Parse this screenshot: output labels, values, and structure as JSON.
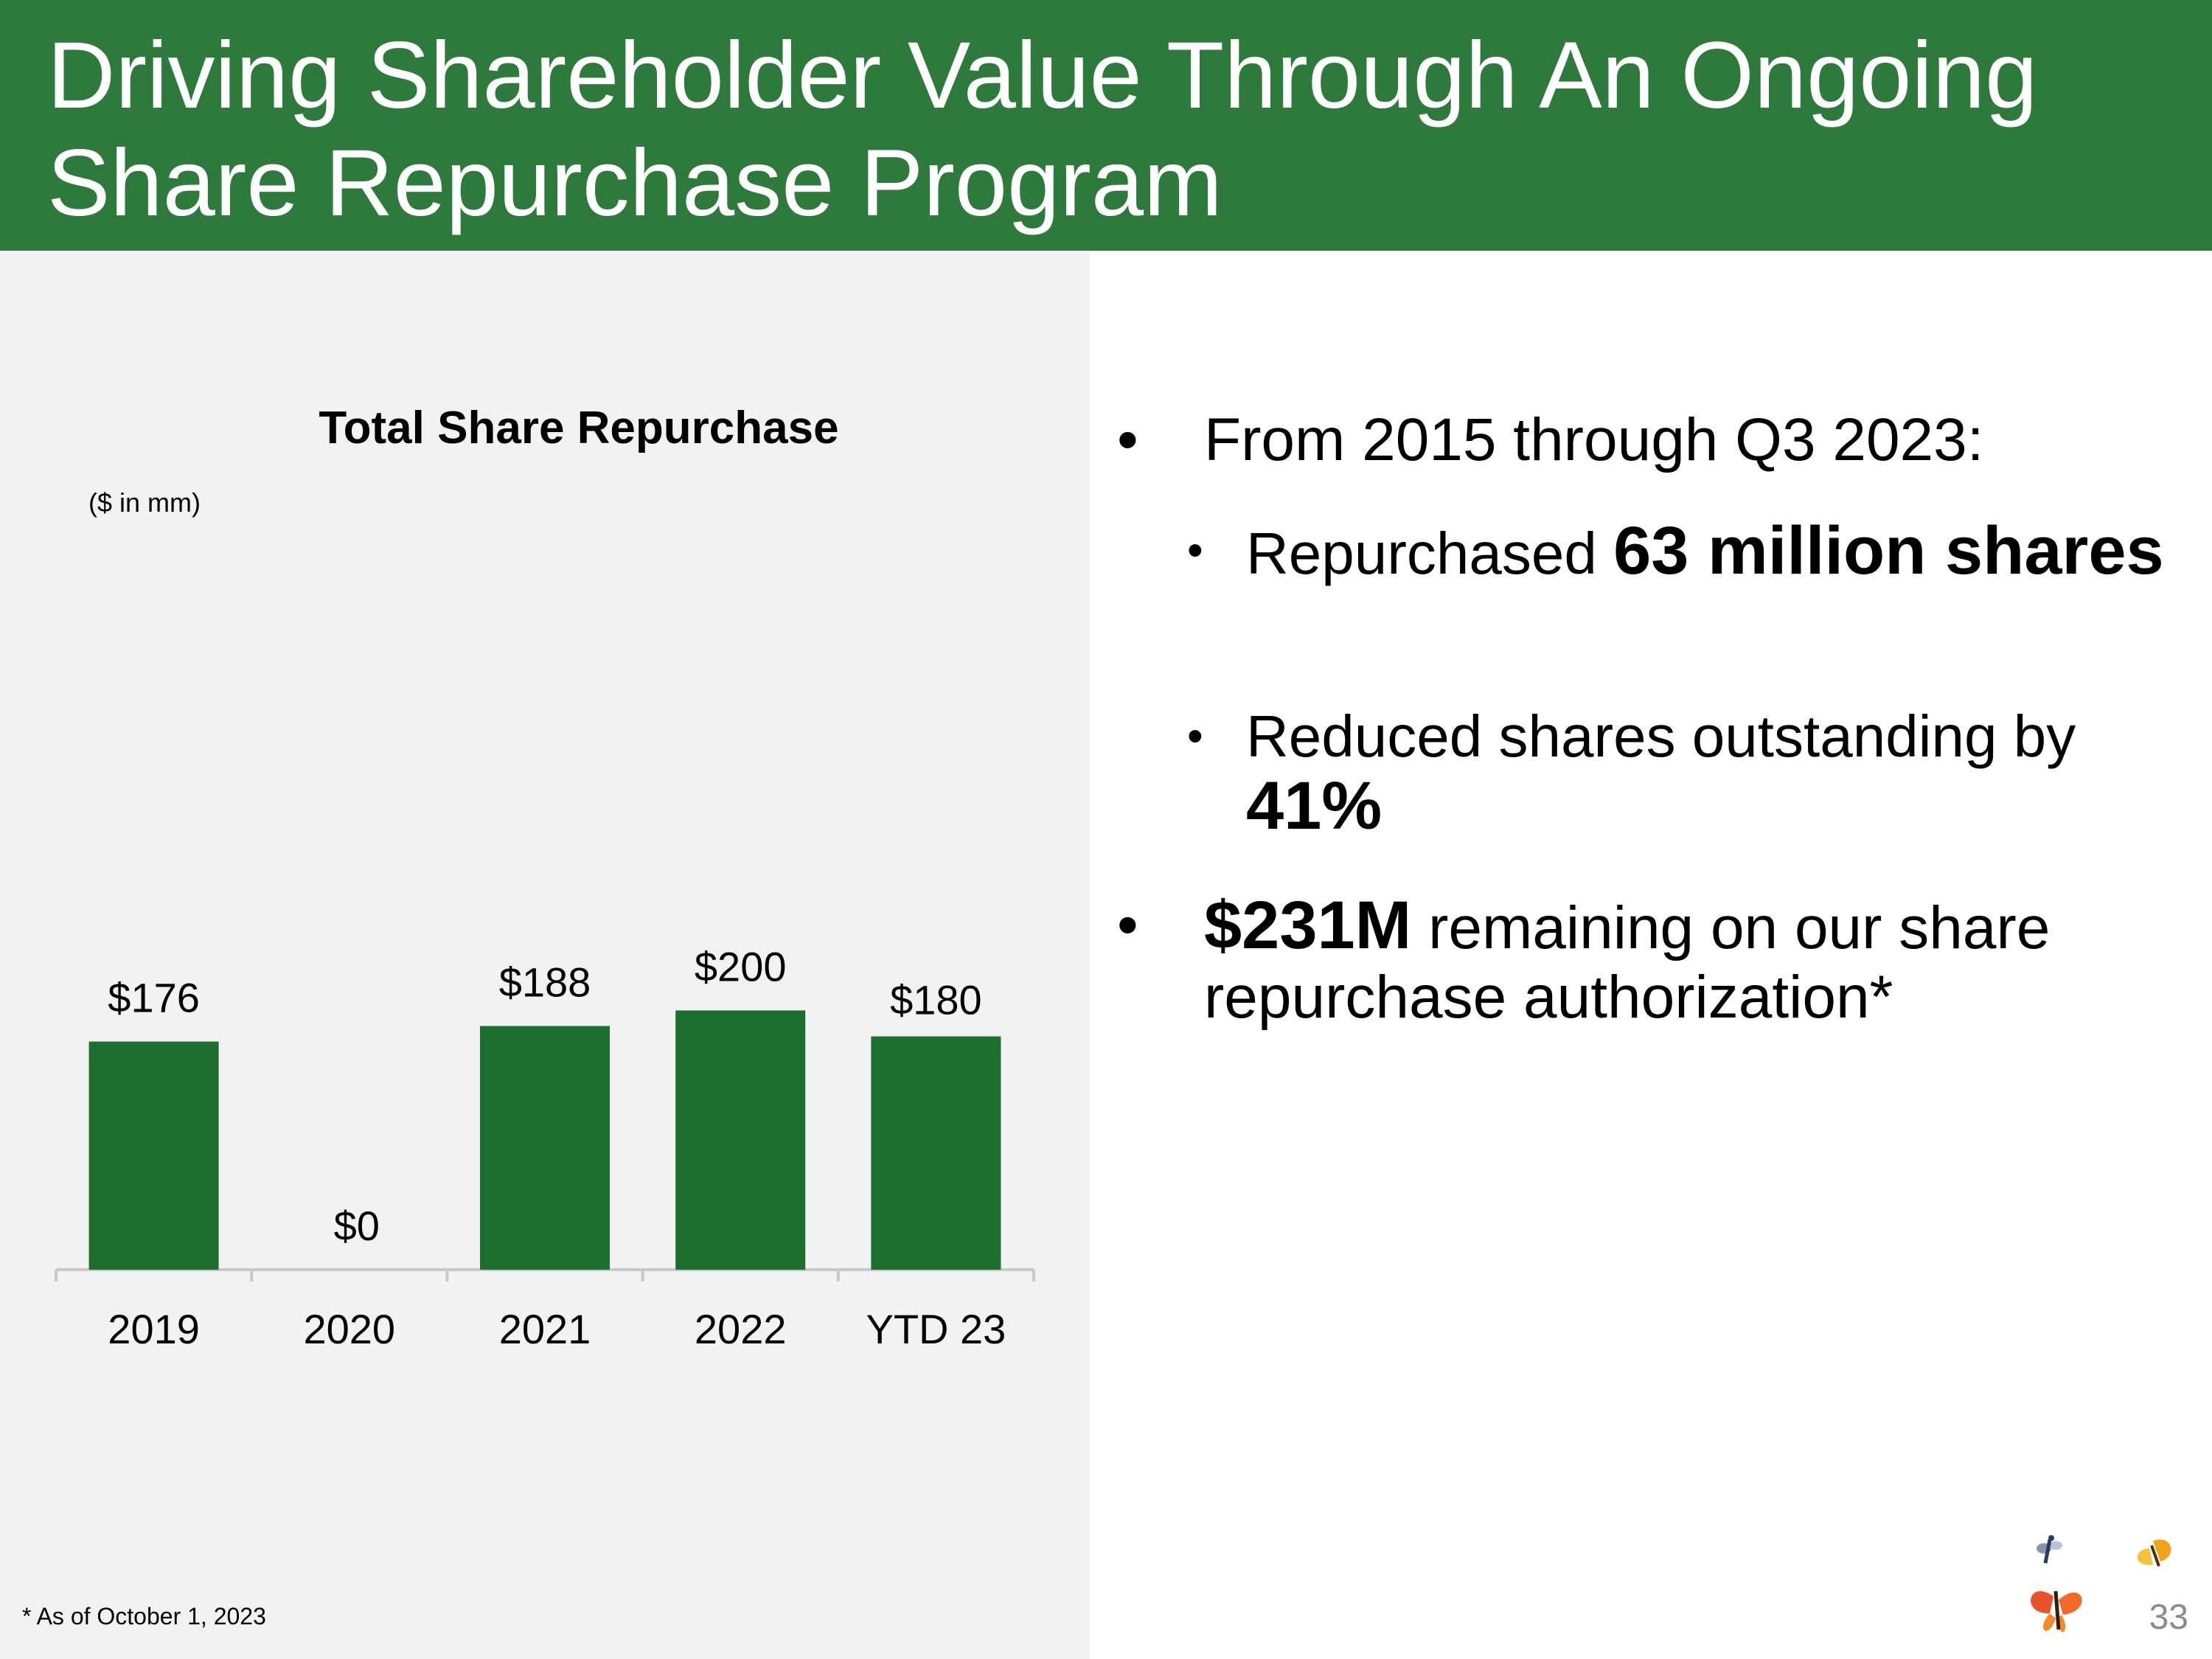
{
  "header": {
    "title": "Driving Shareholder Value Through An Ongoing Share Repurchase Program"
  },
  "chart_data": {
    "type": "bar",
    "title": "Total Share Repurchase",
    "subtitle": "($ in mm)",
    "categories": [
      "2019",
      "2020",
      "2021",
      "2022",
      "YTD 23"
    ],
    "values": [
      176,
      0,
      188,
      200,
      180
    ],
    "data_labels": [
      "$176",
      "$0",
      "$188",
      "$200",
      "$180"
    ],
    "xlabel": "",
    "ylabel": "",
    "ylim": [
      0,
      220
    ],
    "grid": false,
    "bar_color": "#1e6e30"
  },
  "bullets": {
    "b1": "From 2015 through Q3 2023:",
    "b2_pre": "Repurchased ",
    "b2_bold": "63 million shares",
    "b3_pre": "Reduced shares outstanding by ",
    "b3_bold": "41%",
    "b4_bold": "$231M",
    "b4_post": " remaining on our share repurchase authorization*"
  },
  "footnote": "* As of October 1, 2023",
  "page_number": "33",
  "colors": {
    "header_bg": "#2e7a3c",
    "panel_bg": "#f2f2f2",
    "logo_icon": "butterfly-logo-icon"
  }
}
